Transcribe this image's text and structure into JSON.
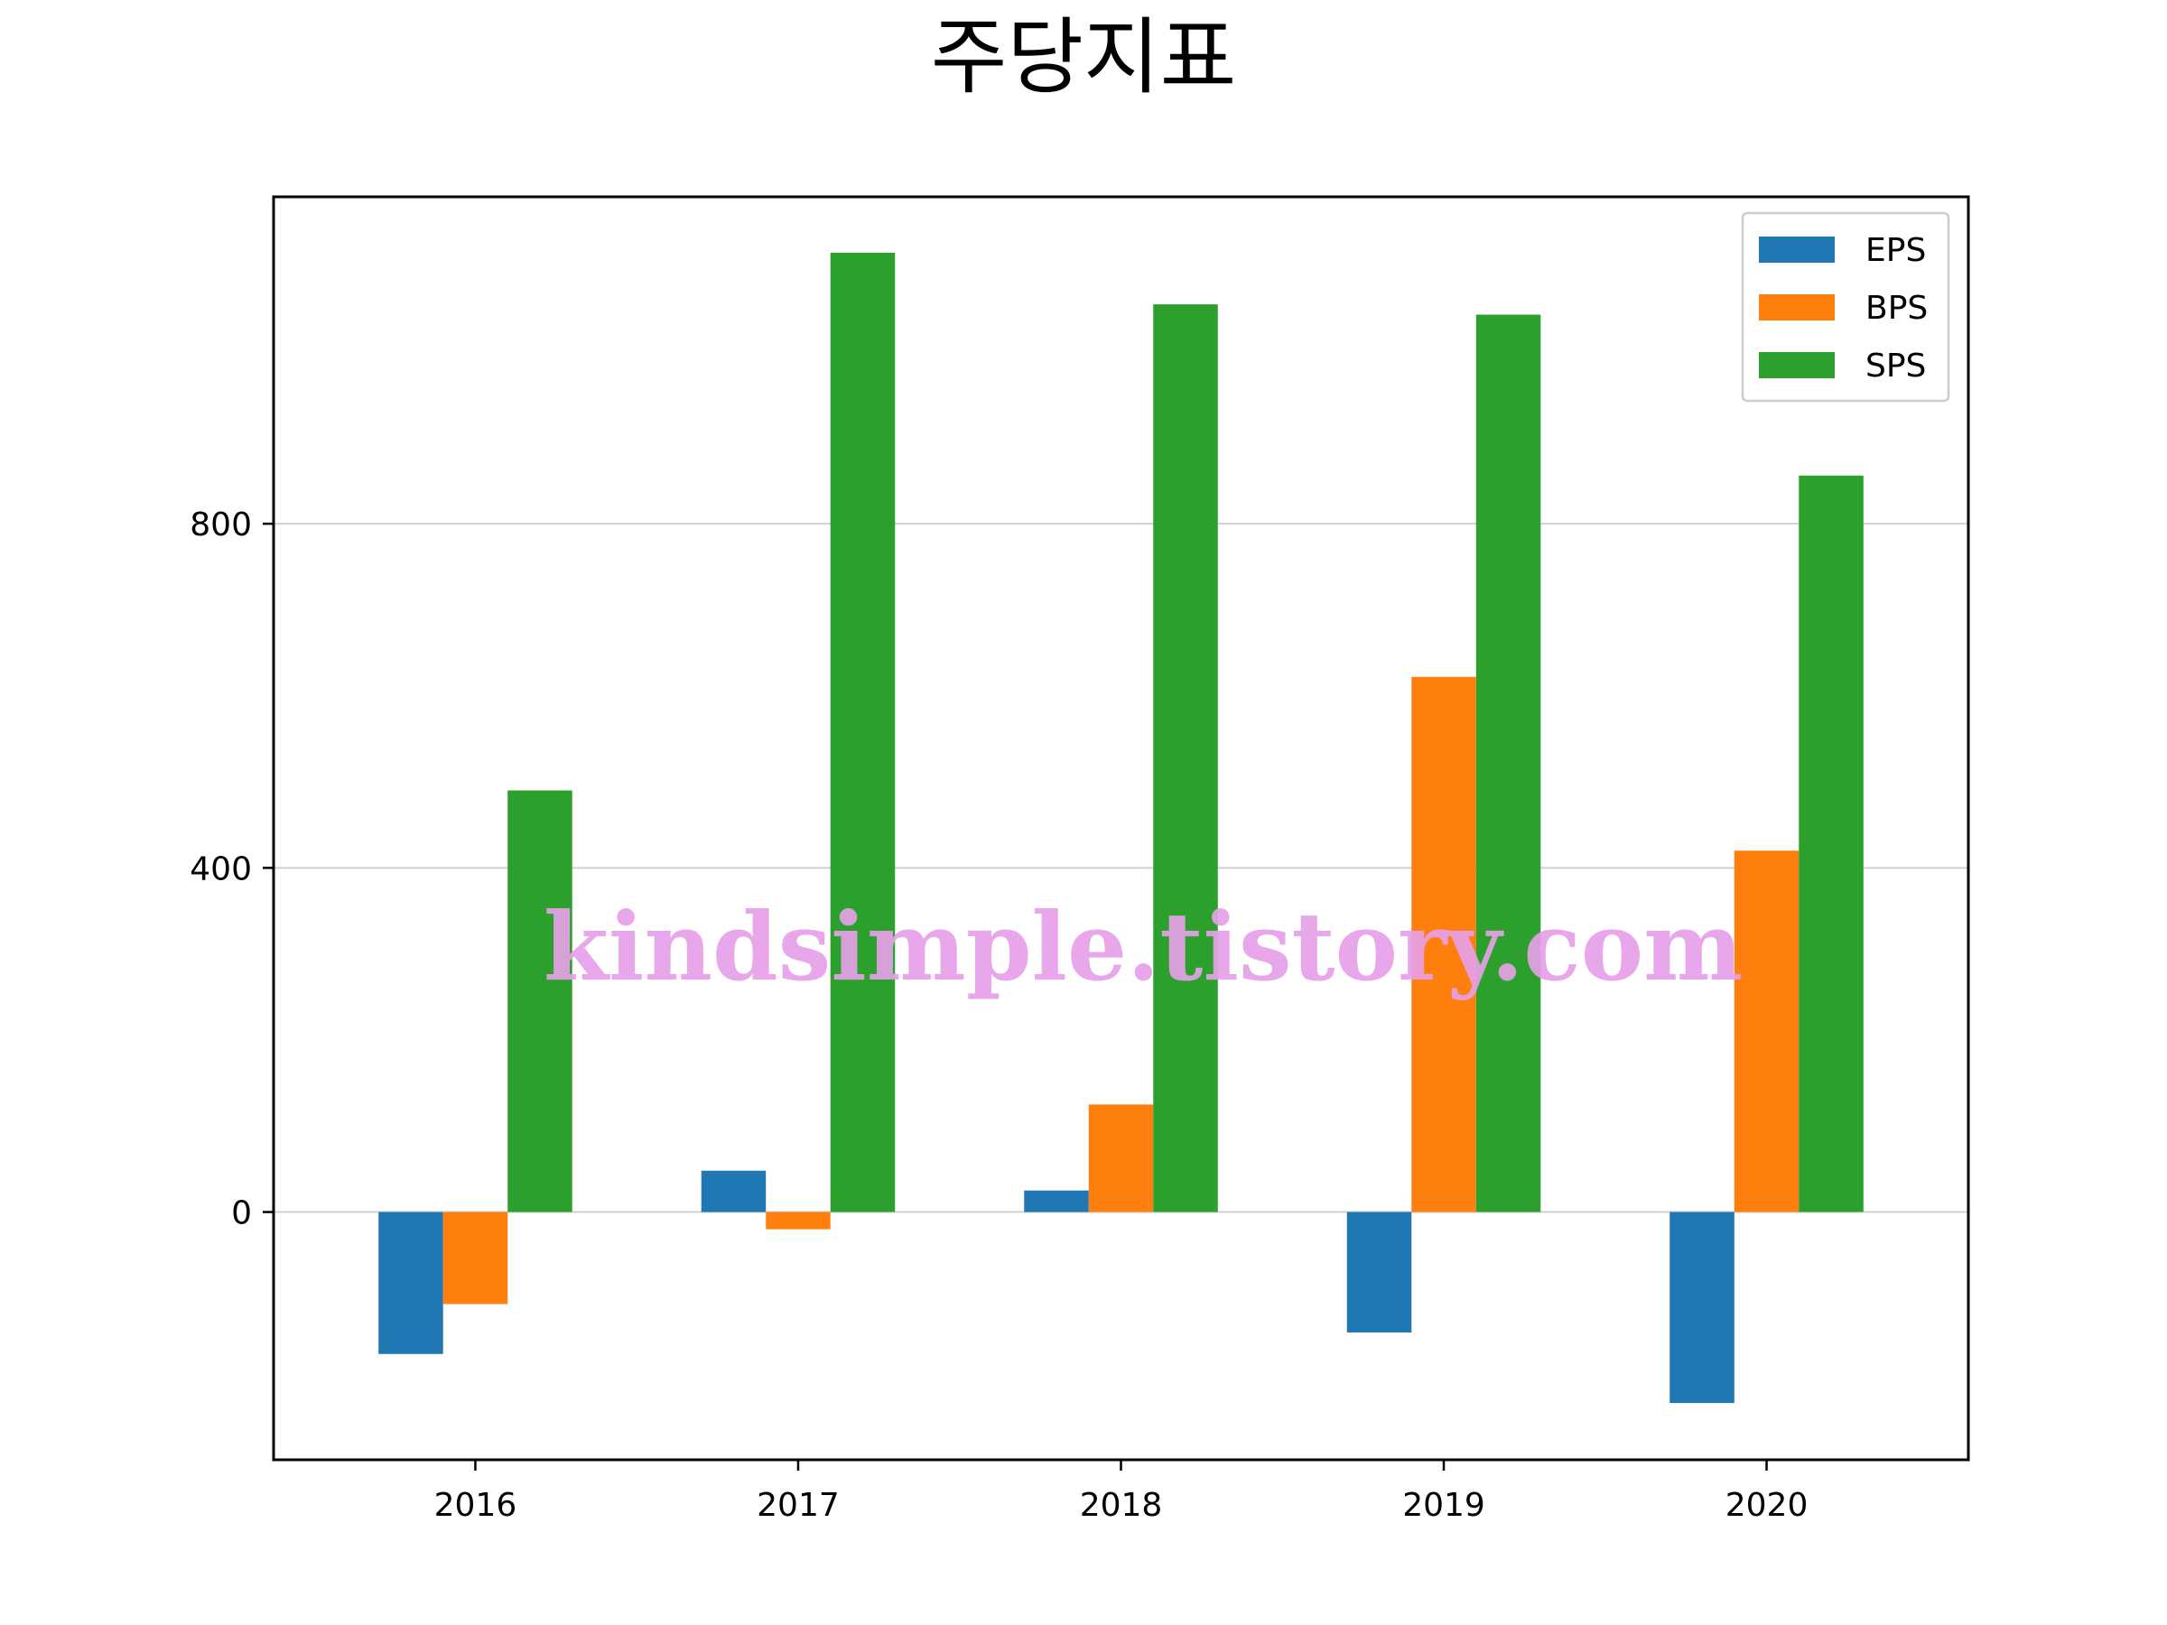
{
  "chart_data": {
    "type": "bar",
    "title": "주당지표",
    "xlabel": "",
    "ylabel": "",
    "categories": [
      "2016",
      "2017",
      "2018",
      "2019",
      "2020"
    ],
    "series": [
      {
        "name": "EPS",
        "color": "#1f77b4",
        "values": [
          -165,
          48,
          25,
          -140,
          -222
        ]
      },
      {
        "name": "BPS",
        "color": "#ff7f0e",
        "values": [
          -107,
          -20,
          125,
          622,
          420
        ]
      },
      {
        "name": "SPS",
        "color": "#2ca02c",
        "values": [
          490,
          1115,
          1055,
          1043,
          856
        ]
      }
    ],
    "ylim": [
      -288,
      1180
    ],
    "yticks": [
      0,
      400,
      800
    ],
    "grid": "horizontal",
    "legend": "top-right"
  },
  "watermark": "kindsimple.tistory.com"
}
